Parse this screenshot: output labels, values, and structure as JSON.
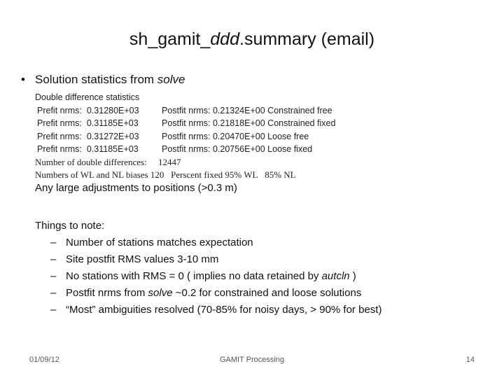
{
  "title": {
    "prefix": "sh_gamit_",
    "italic": "ddd",
    "suffix": ".summary (email)"
  },
  "bullet": {
    "symbol": "•",
    "text": "Solution statistics from ",
    "italic": "solve"
  },
  "stats": {
    "heading": "Double difference statistics",
    "rows": [
      {
        "prefit_label": "Prefit nrms:",
        "prefit_value": "0.31280E+03",
        "postfit_label": "Postfit nrms:",
        "postfit_value": "0.21324E+00",
        "type": "Constrained free"
      },
      {
        "prefit_label": "Prefit nrms:",
        "prefit_value": "0.31185E+03",
        "postfit_label": "Postfit nrms:",
        "postfit_value": "0.21818E+00",
        "type": "Constrained fixed"
      },
      {
        "prefit_label": "Prefit nrms:",
        "prefit_value": "0.31272E+03",
        "postfit_label": "Postfit nrms:",
        "postfit_value": "0.20470E+00",
        "type": "Loose free"
      },
      {
        "prefit_label": "Prefit nrms:",
        "prefit_value": "0.31185E+03",
        "postfit_label": "Postfit nrms:",
        "postfit_value": "0.20756E+00",
        "type": "Loose fixed"
      }
    ],
    "dd_label": "Number of double differences:",
    "dd_value": "12447",
    "biases_label": "Numbers of WL and NL biases",
    "biases_value": "120",
    "percent_label": "Perscent fixed",
    "wl": "95% WL",
    "nl": "85% NL"
  },
  "adjustments": "Any large adjustments to positions (>0.3 m)",
  "notes": {
    "heading": "Things to note:",
    "dash": "–",
    "items": [
      {
        "before": "Number of stations matches expectation",
        "italic": "",
        "after": ""
      },
      {
        "before": "Site postfit RMS values 3-10 mm",
        "italic": "",
        "after": ""
      },
      {
        "before": "No stations with RMS = 0 ( implies no data retained by ",
        "italic": "autcln",
        "after": " )"
      },
      {
        "before": "Postfit nrms from ",
        "italic": "solve",
        "after": " ~0.2 for constrained and loose solutions"
      },
      {
        "before": "“Most” ambiguities resolved (70-85% for noisy days, > 90% for best)",
        "italic": "",
        "after": ""
      }
    ]
  },
  "footer": {
    "date": "01/09/12",
    "center": "GAMIT Processing",
    "page": "14"
  }
}
